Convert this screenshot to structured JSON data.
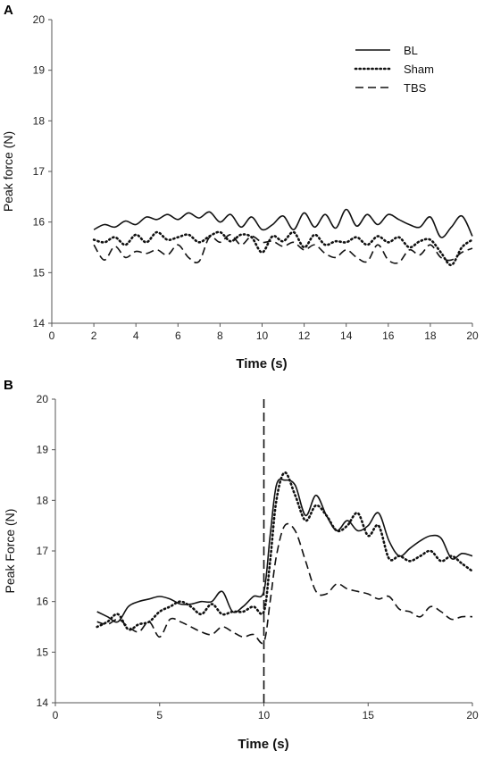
{
  "chart_data": [
    {
      "panel_label": "A",
      "type": "line",
      "title": "",
      "xlabel": "Time (s)",
      "ylabel": "Peak force (N)",
      "xlim": [
        0,
        20
      ],
      "ylim": [
        14,
        20
      ],
      "xticks": [
        0,
        2,
        4,
        6,
        8,
        10,
        12,
        14,
        16,
        18,
        20
      ],
      "yticks": [
        14,
        15,
        16,
        17,
        18,
        19,
        20
      ],
      "grid": false,
      "legend_position": "top-right",
      "series": [
        {
          "name": "BL",
          "style": "solid",
          "x": [
            2.0,
            2.5,
            3.0,
            3.5,
            4.0,
            4.5,
            5.0,
            5.5,
            6.0,
            6.5,
            7.0,
            7.5,
            8.0,
            8.5,
            9.0,
            9.5,
            10.0,
            10.5,
            11.0,
            11.5,
            12.0,
            12.5,
            13.0,
            13.5,
            14.0,
            14.5,
            15.0,
            15.5,
            16.0,
            16.5,
            17.0,
            17.5,
            18.0,
            18.5,
            19.0,
            19.5,
            20.0
          ],
          "y": [
            15.85,
            15.95,
            15.9,
            16.02,
            15.95,
            16.1,
            16.05,
            16.15,
            16.05,
            16.18,
            16.08,
            16.2,
            16.0,
            16.15,
            15.9,
            16.1,
            15.85,
            15.95,
            16.12,
            15.85,
            16.18,
            15.9,
            16.15,
            15.88,
            16.25,
            15.92,
            16.15,
            15.95,
            16.15,
            16.05,
            15.95,
            15.9,
            16.1,
            15.7,
            15.9,
            16.12,
            15.72
          ]
        },
        {
          "name": "Sham",
          "style": "dotted",
          "x": [
            2.0,
            2.5,
            3.0,
            3.5,
            4.0,
            4.5,
            5.0,
            5.5,
            6.0,
            6.5,
            7.0,
            7.5,
            8.0,
            8.5,
            9.0,
            9.5,
            10.0,
            10.5,
            11.0,
            11.5,
            12.0,
            12.5,
            13.0,
            13.5,
            14.0,
            14.5,
            15.0,
            15.5,
            16.0,
            16.5,
            17.0,
            17.5,
            18.0,
            18.5,
            19.0,
            19.5,
            20.0
          ],
          "y": [
            15.65,
            15.6,
            15.7,
            15.55,
            15.75,
            15.6,
            15.8,
            15.65,
            15.7,
            15.75,
            15.6,
            15.72,
            15.8,
            15.62,
            15.75,
            15.7,
            15.4,
            15.72,
            15.62,
            15.8,
            15.5,
            15.75,
            15.55,
            15.62,
            15.6,
            15.7,
            15.55,
            15.72,
            15.6,
            15.7,
            15.5,
            15.62,
            15.65,
            15.4,
            15.15,
            15.5,
            15.65
          ]
        },
        {
          "name": "TBS",
          "style": "dashed",
          "x": [
            2.0,
            2.5,
            3.0,
            3.5,
            4.0,
            4.5,
            5.0,
            5.5,
            6.0,
            6.5,
            7.0,
            7.5,
            8.0,
            8.5,
            9.0,
            9.5,
            10.0,
            10.5,
            11.0,
            11.5,
            12.0,
            12.5,
            13.0,
            13.5,
            14.0,
            14.5,
            15.0,
            15.5,
            16.0,
            16.5,
            17.0,
            17.5,
            18.0,
            18.5,
            19.0,
            19.5,
            20.0
          ],
          "y": [
            15.55,
            15.25,
            15.52,
            15.3,
            15.42,
            15.38,
            15.45,
            15.35,
            15.55,
            15.3,
            15.22,
            15.7,
            15.6,
            15.75,
            15.55,
            15.72,
            15.6,
            15.62,
            15.52,
            15.6,
            15.45,
            15.55,
            15.38,
            15.3,
            15.45,
            15.3,
            15.22,
            15.55,
            15.25,
            15.2,
            15.45,
            15.35,
            15.55,
            15.3,
            15.25,
            15.4,
            15.48
          ]
        }
      ]
    },
    {
      "panel_label": "B",
      "type": "line",
      "title": "",
      "xlabel": "Time (s)",
      "ylabel": "Peak Force (N)",
      "xlim": [
        0,
        20
      ],
      "ylim": [
        14,
        20
      ],
      "xticks": [
        0,
        5,
        10,
        15,
        20
      ],
      "yticks": [
        14,
        15,
        16,
        17,
        18,
        19,
        20
      ],
      "grid": false,
      "annotations": [
        {
          "type": "vertical-dashed-line",
          "x": 10
        }
      ],
      "series": [
        {
          "name": "BL",
          "style": "solid",
          "x": [
            2.0,
            2.5,
            3.0,
            3.5,
            4.0,
            4.5,
            5.0,
            5.5,
            6.0,
            6.5,
            7.0,
            7.5,
            8.0,
            8.5,
            9.0,
            9.5,
            10.0,
            10.3,
            10.6,
            11.0,
            11.5,
            12.0,
            12.5,
            13.0,
            13.5,
            14.0,
            14.5,
            15.0,
            15.5,
            16.0,
            16.5,
            17.0,
            17.5,
            18.0,
            18.5,
            19.0,
            19.5,
            20.0
          ],
          "y": [
            15.8,
            15.7,
            15.6,
            15.9,
            16.0,
            16.05,
            16.1,
            16.05,
            15.95,
            15.95,
            16.0,
            16.0,
            16.2,
            15.8,
            15.9,
            16.1,
            16.2,
            17.3,
            18.3,
            18.4,
            18.3,
            17.7,
            18.1,
            17.7,
            17.4,
            17.6,
            17.4,
            17.5,
            17.75,
            17.2,
            16.9,
            17.05,
            17.2,
            17.3,
            17.25,
            16.85,
            16.95,
            16.9
          ]
        },
        {
          "name": "Sham",
          "style": "dotted",
          "x": [
            2.0,
            2.5,
            3.0,
            3.5,
            4.0,
            4.5,
            5.0,
            5.5,
            6.0,
            6.5,
            7.0,
            7.5,
            8.0,
            8.5,
            9.0,
            9.5,
            10.0,
            10.3,
            10.6,
            11.0,
            11.5,
            12.0,
            12.5,
            13.0,
            13.5,
            14.0,
            14.5,
            15.0,
            15.5,
            16.0,
            16.5,
            17.0,
            17.5,
            18.0,
            18.5,
            19.0,
            19.5,
            20.0
          ],
          "y": [
            15.5,
            15.6,
            15.75,
            15.45,
            15.55,
            15.6,
            15.8,
            15.9,
            16.0,
            15.9,
            15.75,
            15.95,
            15.75,
            15.8,
            15.8,
            15.9,
            15.8,
            16.8,
            18.0,
            18.55,
            18.1,
            17.6,
            17.9,
            17.7,
            17.4,
            17.5,
            17.75,
            17.3,
            17.5,
            16.85,
            16.9,
            16.8,
            16.9,
            17.0,
            16.8,
            16.9,
            16.75,
            16.6
          ]
        },
        {
          "name": "TBS",
          "style": "dashed",
          "x": [
            2.0,
            2.5,
            3.0,
            3.5,
            4.0,
            4.5,
            5.0,
            5.5,
            6.0,
            6.5,
            7.0,
            7.5,
            8.0,
            8.5,
            9.0,
            9.5,
            10.0,
            10.3,
            10.6,
            11.0,
            11.5,
            12.0,
            12.5,
            13.0,
            13.5,
            14.0,
            14.5,
            15.0,
            15.5,
            16.0,
            16.5,
            17.0,
            17.5,
            18.0,
            18.5,
            19.0,
            19.5,
            20.0
          ],
          "y": [
            15.6,
            15.55,
            15.65,
            15.5,
            15.4,
            15.6,
            15.3,
            15.65,
            15.6,
            15.5,
            15.4,
            15.35,
            15.5,
            15.4,
            15.3,
            15.35,
            15.2,
            16.0,
            16.9,
            17.5,
            17.4,
            16.8,
            16.2,
            16.15,
            16.35,
            16.25,
            16.2,
            16.15,
            16.05,
            16.1,
            15.85,
            15.8,
            15.7,
            15.9,
            15.8,
            15.65,
            15.7,
            15.7
          ]
        }
      ]
    }
  ]
}
